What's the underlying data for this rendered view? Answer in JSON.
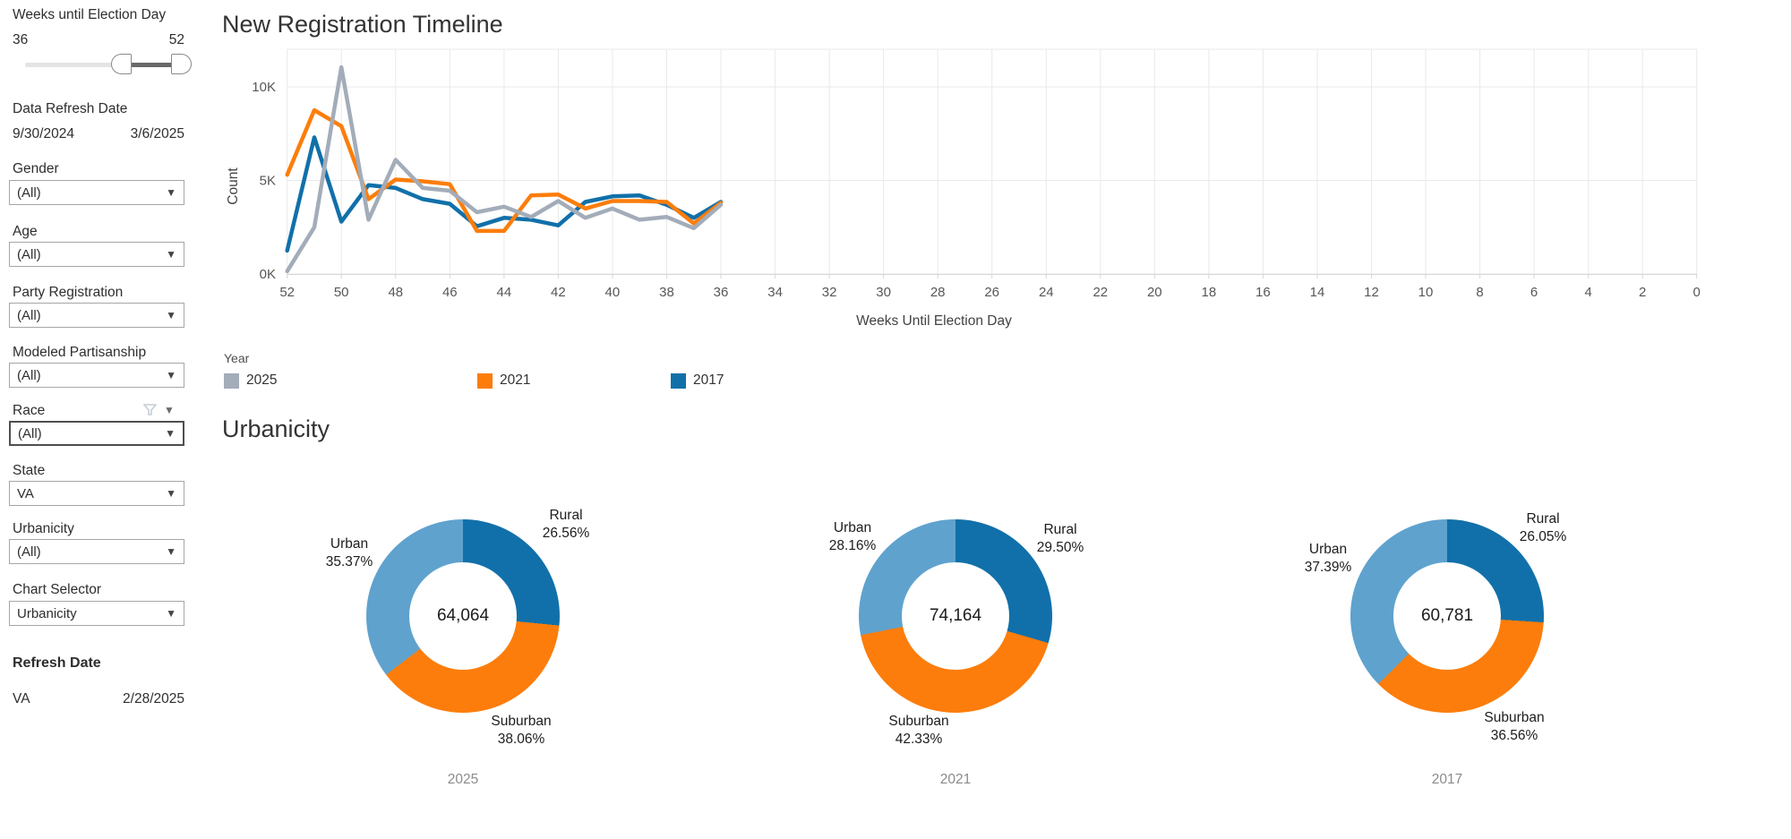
{
  "colors": {
    "series_2025": "#a3acb9",
    "series_2021": "#fc7d0b",
    "series_2017": "#1170aa",
    "urban_light_blue": "#5fa2ce",
    "gridline": "#e9e9e9",
    "axis_line": "#d6d6d6",
    "tick_text": "#575757"
  },
  "sidebar": {
    "slider": {
      "label": "Weeks until Election Day",
      "min_label": "36",
      "max_label": "52"
    },
    "data_refresh": {
      "label": "Data Refresh Date",
      "start": "9/30/2024",
      "end": "3/6/2025"
    },
    "filters": [
      {
        "label": "Gender",
        "value": "(All)"
      },
      {
        "label": "Age",
        "value": "(All)"
      },
      {
        "label": "Party Registration",
        "value": "(All)"
      },
      {
        "label": "Modeled Partisanship",
        "value": "(All)"
      },
      {
        "label": "Race",
        "value": "(All)"
      },
      {
        "label": "State",
        "value": "VA"
      },
      {
        "label": "Urbanicity",
        "value": "(All)"
      },
      {
        "label": "Chart Selector",
        "value": "Urbanicity"
      }
    ],
    "refresh": {
      "label": "Refresh Date",
      "state": "VA",
      "date": "2/28/2025"
    }
  },
  "main": {
    "urbanicity_title": "Urbanicity"
  },
  "legend": {
    "title": "Year",
    "items": [
      {
        "label": "2025",
        "color": "#a3acb9"
      },
      {
        "label": "2021",
        "color": "#fc7d0b"
      },
      {
        "label": "2017",
        "color": "#1170aa"
      }
    ]
  },
  "chart_data": [
    {
      "type": "line",
      "title": "New Registration Timeline",
      "xlabel": "Weeks Until Election Day",
      "ylabel": "Count",
      "x_reversed": true,
      "xlim": [
        52,
        0
      ],
      "ylim": [
        0,
        11600
      ],
      "grid": true,
      "legend_position": "bottom-left",
      "x_ticks": [
        52,
        50,
        48,
        46,
        44,
        42,
        40,
        38,
        36,
        34,
        32,
        30,
        28,
        26,
        24,
        22,
        20,
        18,
        16,
        14,
        12,
        10,
        8,
        6,
        4,
        2,
        0
      ],
      "y_ticks": [
        {
          "value": 0,
          "label": "0K"
        },
        {
          "value": 5000,
          "label": "5K"
        },
        {
          "value": 10000,
          "label": "10K"
        }
      ],
      "x": [
        52,
        51,
        50,
        49,
        48,
        47,
        46,
        45,
        44,
        43,
        42,
        41,
        40,
        39,
        38,
        37,
        36
      ],
      "series": [
        {
          "name": "2025",
          "color": "#a3acb9",
          "values": [
            150,
            2500,
            11050,
            2900,
            6100,
            4600,
            4450,
            3300,
            3600,
            3050,
            3900,
            3000,
            3500,
            2900,
            3050,
            2450,
            3700
          ]
        },
        {
          "name": "2021",
          "color": "#fc7d0b",
          "values": [
            5300,
            8750,
            7900,
            4000,
            5050,
            4950,
            4800,
            2300,
            2300,
            4200,
            4250,
            3500,
            3900,
            3900,
            3850,
            2700,
            3800
          ]
        },
        {
          "name": "2017",
          "color": "#1170aa",
          "values": [
            1250,
            7300,
            2800,
            4750,
            4600,
            4000,
            3750,
            2550,
            3000,
            2900,
            2600,
            3850,
            4150,
            4200,
            3700,
            3000,
            3850
          ]
        }
      ]
    },
    {
      "type": "donut",
      "caption": "2025",
      "total": "64,064",
      "slices": [
        {
          "label": "Rural",
          "pct": 26.56,
          "pct_label": "26.56%",
          "color": "#1170aa"
        },
        {
          "label": "Suburban",
          "pct": 38.06,
          "pct_label": "38.06%",
          "color": "#fc7d0b"
        },
        {
          "label": "Urban",
          "pct": 35.37,
          "pct_label": "35.37%",
          "color": "#5fa2ce"
        }
      ]
    },
    {
      "type": "donut",
      "caption": "2021",
      "total": "74,164",
      "slices": [
        {
          "label": "Rural",
          "pct": 29.5,
          "pct_label": "29.50%",
          "color": "#1170aa"
        },
        {
          "label": "Suburban",
          "pct": 42.33,
          "pct_label": "42.33%",
          "color": "#fc7d0b"
        },
        {
          "label": "Urban",
          "pct": 28.16,
          "pct_label": "28.16%",
          "color": "#5fa2ce"
        }
      ]
    },
    {
      "type": "donut",
      "caption": "2017",
      "total": "60,781",
      "slices": [
        {
          "label": "Rural",
          "pct": 26.05,
          "pct_label": "26.05%",
          "color": "#1170aa"
        },
        {
          "label": "Suburban",
          "pct": 36.56,
          "pct_label": "36.56%",
          "color": "#fc7d0b"
        },
        {
          "label": "Urban",
          "pct": 37.39,
          "pct_label": "37.39%",
          "color": "#5fa2ce"
        }
      ]
    }
  ]
}
